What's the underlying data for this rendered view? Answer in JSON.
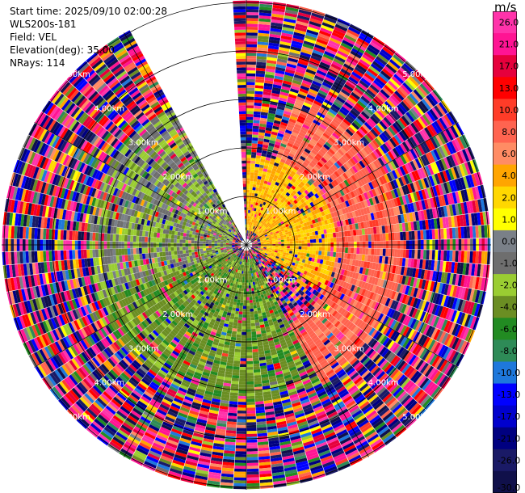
{
  "header": {
    "start_time": "Start time: 2025/09/10 02:00:28",
    "instrument": "WLS200s-181",
    "field": "Field: VEL",
    "elevation": "Elevation(deg): 35.00",
    "nrays": "NRays: 114"
  },
  "colorbar": {
    "unit": "m/s",
    "ticks": [
      "26.0",
      "21.0",
      "17.0",
      "13.0",
      "10.0",
      "8.0",
      "6.0",
      "4.0",
      "2.0",
      "1.0",
      "0.0",
      "-1.0",
      "-2.0",
      "-4.0",
      "-6.0",
      "-8.0",
      "-10.0",
      "-13.0",
      "-17.0",
      "-21.0",
      "-26.0",
      "-30.0"
    ],
    "colors": [
      "#ff33aa",
      "#ff1493",
      "#e6003c",
      "#ff0000",
      "#ff3c28",
      "#ff6450",
      "#ff8c64",
      "#ffa500",
      "#ffd700",
      "#ffff00",
      "#7a8088",
      "#6e6e6e",
      "#9acd32",
      "#6b8e23",
      "#228b22",
      "#2e8b57",
      "#1e78dc",
      "#0000ff",
      "#0000cd",
      "#000080",
      "#1a1a66",
      "#10104a"
    ]
  },
  "chart_data": {
    "type": "ppi",
    "field": "VEL",
    "elevation_deg": 35.0,
    "nrays": 114,
    "range_rings_km": [
      1,
      2,
      3,
      4,
      5
    ],
    "ring_labels": [
      "1.00km",
      "2.00km",
      "3.00km",
      "4.00km",
      "5.00km"
    ],
    "gap_azimuth_deg": [
      330,
      358
    ],
    "vmin": -30.0,
    "vmax": 30.0,
    "regions": [
      {
        "az_from": 0,
        "az_to": 120,
        "r_from": 0.3,
        "r_to": 1.8,
        "value": 4.0
      },
      {
        "az_from": 20,
        "az_to": 150,
        "r_from": 1.8,
        "r_to": 3.2,
        "value": 9.0
      },
      {
        "az_from": 150,
        "az_to": 250,
        "r_from": 0.3,
        "r_to": 3.2,
        "value": -3.0
      },
      {
        "az_from": 250,
        "az_to": 330,
        "r_from": 0.3,
        "r_to": 3.2,
        "value": -1.0
      }
    ]
  }
}
